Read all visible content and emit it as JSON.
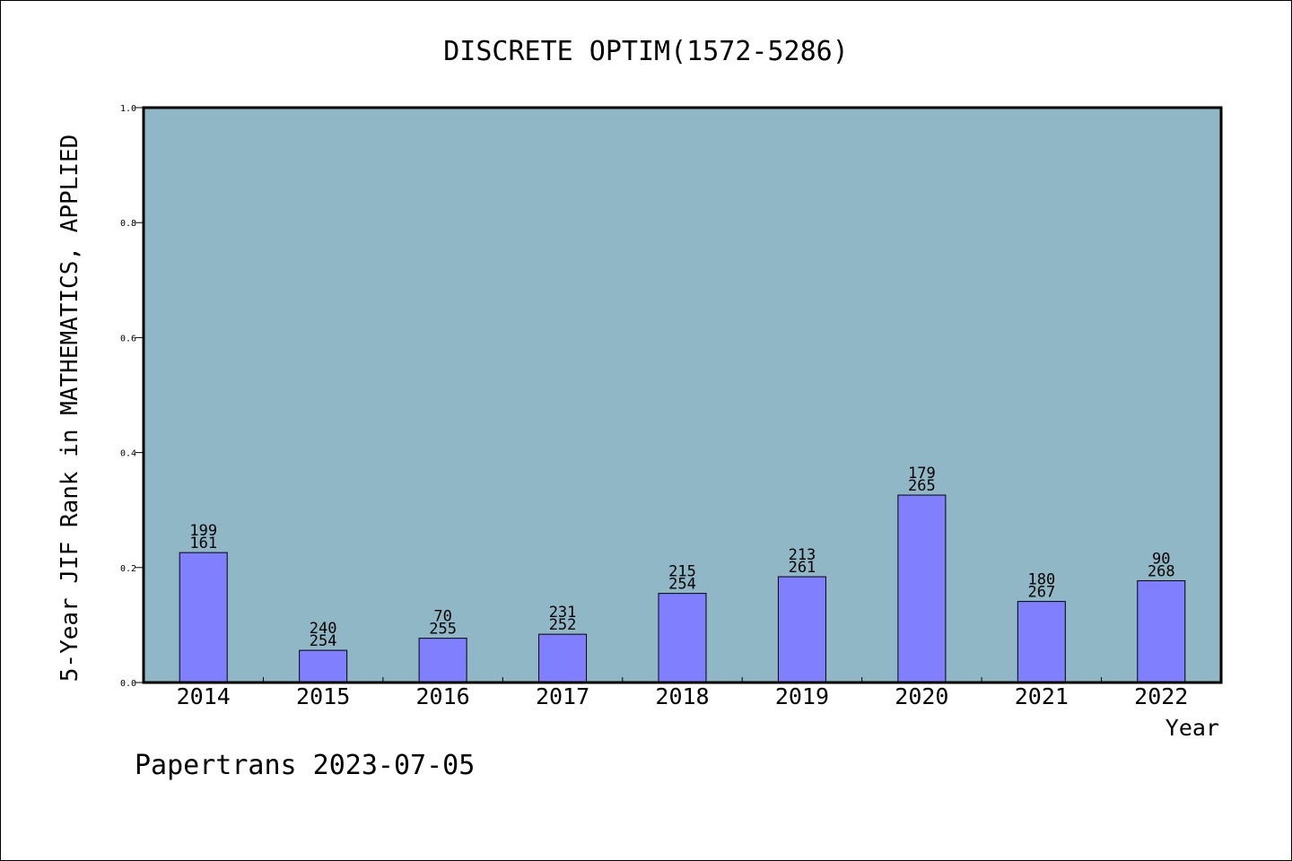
{
  "chart_data": {
    "type": "bar",
    "title": "DISCRETE OPTIM(1572-5286)",
    "xlabel": "Year",
    "ylabel": "5-Year JIF Rank in MATHEMATICS, APPLIED",
    "ylim": [
      0,
      1.0
    ],
    "yticks": [
      "0.0",
      "0.2",
      "0.4",
      "0.6",
      "0.8",
      "1.0"
    ],
    "grid": false,
    "colors": {
      "plot_bg": "#8fb7c5",
      "bar": "#8080ff",
      "axis": "#000000"
    },
    "categories": [
      "2014",
      "2015",
      "2016",
      "2017",
      "2018",
      "2019",
      "2020",
      "2021",
      "2022"
    ],
    "values": [
      0.226,
      0.056,
      0.077,
      0.084,
      0.155,
      0.184,
      0.326,
      0.141,
      0.177
    ],
    "rank_labels": [
      "199",
      "240",
      "70",
      "231",
      "215",
      "213",
      "179",
      "180",
      "90"
    ],
    "total_labels": [
      "161",
      "254",
      "255",
      "252",
      "254",
      "261",
      "265",
      "267",
      "268"
    ]
  },
  "footer": {
    "text": "Papertrans 2023-07-05"
  }
}
